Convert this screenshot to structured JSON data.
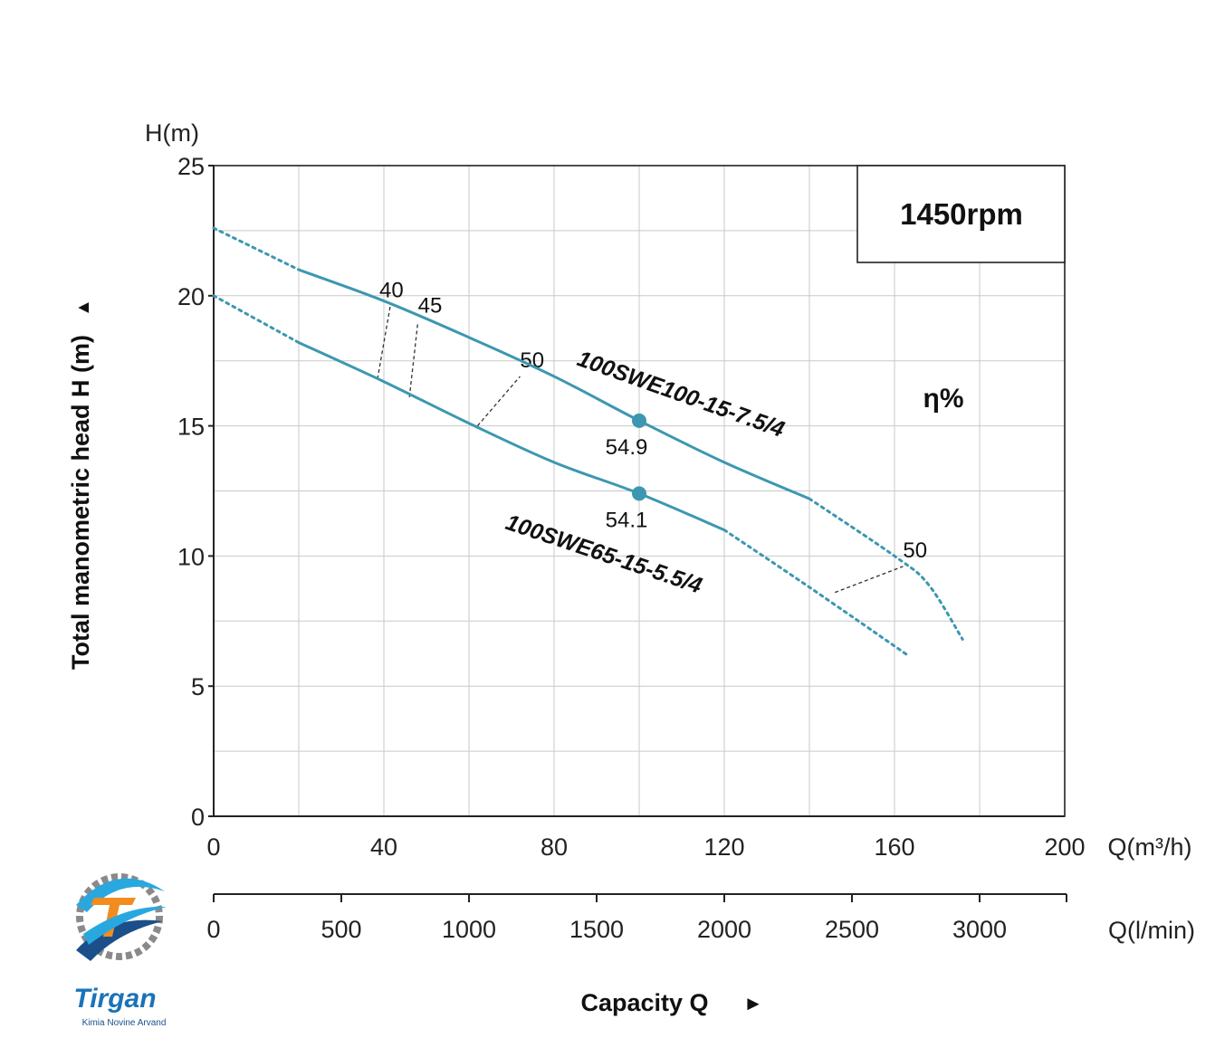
{
  "chart_data": {
    "type": "line",
    "speed_label": "1450rpm",
    "efficiency_label": "η%",
    "ylabel_unit": "H(m)",
    "ylabel": "Total manometric head H (m)",
    "ylabel_arrow": "▲",
    "xlabel_unit": "Q(m³/h)",
    "x2label_unit": "Q(l/min)",
    "xlabel": "Capacity Q",
    "xlabel_arrow": "►",
    "xlim": [
      0,
      200
    ],
    "ylim": [
      0,
      25
    ],
    "x_ticks": [
      "0",
      "40",
      "80",
      "120",
      "160",
      "200"
    ],
    "y_ticks": [
      "0",
      "5",
      "10",
      "15",
      "20",
      "25"
    ],
    "x2_ticks": [
      "0",
      "500",
      "1000",
      "1500",
      "2000",
      "2500",
      "3000"
    ],
    "x2_tick_values": [
      0,
      500,
      1000,
      1500,
      2000,
      2500,
      3000
    ],
    "grid": true,
    "series": [
      {
        "name": "100SWE100-15-7.5/4",
        "color": "#3d97b1",
        "dotted_start": [
          [
            0,
            22.6
          ],
          [
            20,
            21.0
          ]
        ],
        "solid": [
          [
            20,
            21.0
          ],
          [
            40,
            19.8
          ],
          [
            60,
            18.4
          ],
          [
            80,
            16.9
          ],
          [
            100,
            15.2
          ],
          [
            120,
            13.6
          ],
          [
            140,
            12.2
          ]
        ],
        "dotted_end": [
          [
            140,
            12.2
          ],
          [
            160,
            10.0
          ],
          [
            168,
            8.9
          ],
          [
            176,
            6.8
          ]
        ],
        "best_point": {
          "x": 100,
          "y": 15.2,
          "label": "54.9"
        }
      },
      {
        "name": "100SWE65-15-5.5/4",
        "color": "#3d97b1",
        "dotted_start": [
          [
            0,
            20.0
          ],
          [
            20,
            18.2
          ]
        ],
        "solid": [
          [
            20,
            18.2
          ],
          [
            40,
            16.7
          ],
          [
            60,
            15.1
          ],
          [
            80,
            13.6
          ],
          [
            100,
            12.4
          ],
          [
            120,
            11.0
          ]
        ],
        "dotted_end": [
          [
            120,
            11.0
          ],
          [
            140,
            8.8
          ],
          [
            163,
            6.2
          ]
        ],
        "best_point": {
          "x": 100,
          "y": 12.4,
          "label": "54.1"
        }
      }
    ],
    "efficiency_lines": [
      {
        "label": "40",
        "from": [
          38.5,
          16.8
        ],
        "to": [
          41.5,
          19.6
        ]
      },
      {
        "label": "45",
        "from": [
          46,
          16.1
        ],
        "to": [
          48,
          19.0
        ]
      },
      {
        "label": "50",
        "from": [
          62,
          15.0
        ],
        "to": [
          72,
          16.9
        ]
      },
      {
        "label": "50",
        "from": [
          146,
          8.6
        ],
        "to": [
          162,
          9.6
        ]
      }
    ]
  },
  "logo": {
    "name": "Tirgan",
    "tagline": "Kimia Novine Arvand"
  }
}
